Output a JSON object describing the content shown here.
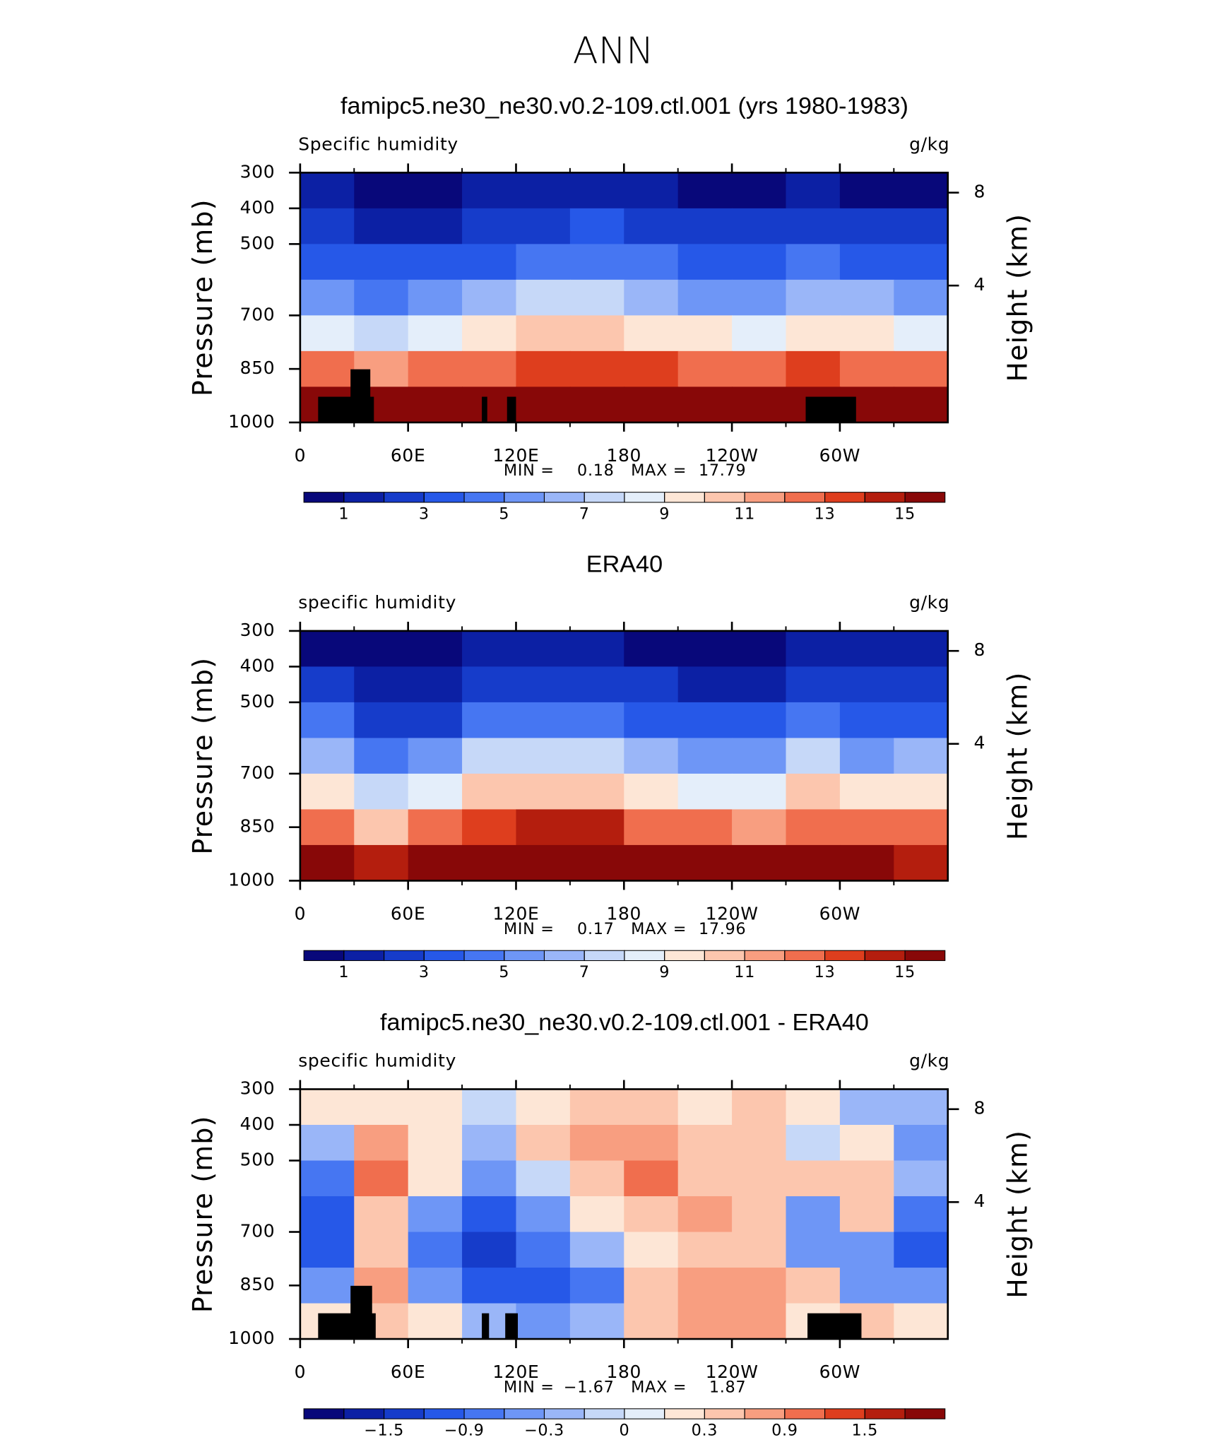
{
  "title": "ANN",
  "chart_data": [
    {
      "type": "contour",
      "title": "famipc5.ne30_ne30.v0.2-109.ctl.001 (yrs 1980-1983)",
      "left_label": "Specific humidity",
      "right_label": "g/kg",
      "ylabel": "Pressure (mb)",
      "y2label": "Height (km)",
      "xlim": [
        0,
        360
      ],
      "ylim": [
        1000,
        300
      ],
      "xticks": [
        0,
        {
          "value": 60,
          "label": "60E"
        },
        {
          "value": 120,
          "label": "120E"
        },
        180,
        {
          "value": 240,
          "label": "120W"
        },
        {
          "value": 300,
          "label": "60W"
        }
      ],
      "xticks_minor": [
        30,
        90,
        150,
        210,
        270,
        330
      ],
      "yticks": [
        300,
        400,
        500,
        700,
        850,
        1000
      ],
      "y2ticks": [
        4,
        8
      ],
      "x": [
        15,
        45,
        75,
        105,
        135,
        165,
        195,
        225,
        255,
        285,
        315,
        345
      ],
      "y": [
        350,
        450,
        550,
        650,
        750,
        850,
        950
      ],
      "z": [
        [
          1.0,
          0.8,
          0.7,
          1.0,
          1.3,
          1.4,
          1.2,
          0.9,
          0.8,
          1.2,
          0.9,
          0.8
        ],
        [
          2.0,
          1.8,
          1.6,
          2.2,
          2.8,
          3.0,
          2.6,
          2.2,
          2.0,
          2.8,
          2.3,
          2.0
        ],
        [
          3.5,
          3.0,
          3.0,
          3.8,
          4.5,
          4.8,
          4.3,
          3.8,
          3.5,
          4.5,
          3.8,
          3.5
        ],
        [
          5.5,
          4.5,
          5.0,
          6.0,
          7.0,
          7.2,
          6.5,
          5.8,
          5.5,
          6.5,
          6.0,
          5.5
        ],
        [
          8.5,
          7.5,
          8.0,
          9.0,
          10.0,
          10.2,
          9.5,
          9.0,
          8.8,
          9.5,
          9.0,
          8.5
        ],
        [
          12,
          11.5,
          12,
          12.5,
          13.5,
          13.5,
          13,
          12.8,
          12.5,
          13,
          12.5,
          12
        ],
        [
          15.5,
          15,
          15.5,
          16,
          16.5,
          16.5,
          16.5,
          16.5,
          16,
          16,
          15.5,
          15
        ]
      ],
      "terrain": [
        {
          "x0": 10,
          "x1": 41,
          "top": 928
        },
        {
          "x0": 28,
          "x1": 39,
          "top": 851
        },
        {
          "x0": 101,
          "x1": 104,
          "top": 928
        },
        {
          "x0": 115,
          "x1": 120,
          "top": 928
        },
        {
          "x0": 281,
          "x1": 309,
          "top": 928
        }
      ],
      "min_label": "MIN =",
      "min": 0.18,
      "max_label": "MAX =",
      "max": 17.79,
      "colorbar": {
        "levels": [
          1,
          2,
          3,
          4,
          5,
          6,
          7,
          8,
          9,
          10,
          11,
          12,
          13,
          14,
          15
        ],
        "labels": [
          1,
          3,
          5,
          7,
          9,
          11,
          13,
          15
        ],
        "colors": [
          "#08087a",
          "#0c20a4",
          "#163cca",
          "#2658e8",
          "#4676f2",
          "#6e96f6",
          "#9ab6f8",
          "#c6d8f8",
          "#e4eefa",
          "#fde6d6",
          "#fcc6ae",
          "#f89e80",
          "#f06e4e",
          "#de3e1e",
          "#b41e0e",
          "#880808"
        ]
      }
    },
    {
      "type": "contour",
      "title": "ERA40",
      "left_label": "specific humidity",
      "right_label": "g/kg",
      "ylabel": "Pressure (mb)",
      "y2label": "Height (km)",
      "xlim": [
        0,
        360
      ],
      "ylim": [
        1000,
        300
      ],
      "xticks": [
        0,
        {
          "value": 60,
          "label": "60E"
        },
        {
          "value": 120,
          "label": "120E"
        },
        180,
        {
          "value": 240,
          "label": "120W"
        },
        {
          "value": 300,
          "label": "60W"
        }
      ],
      "xticks_minor": [
        30,
        90,
        150,
        210,
        270,
        330
      ],
      "yticks": [
        300,
        400,
        500,
        700,
        850,
        1000
      ],
      "y2ticks": [
        4,
        8
      ],
      "x": [
        15,
        45,
        75,
        105,
        135,
        165,
        195,
        225,
        255,
        285,
        315,
        345
      ],
      "y": [
        350,
        450,
        550,
        650,
        750,
        850,
        950
      ],
      "z": [
        [
          0.9,
          0.6,
          0.6,
          1.1,
          1.2,
          1.1,
          0.9,
          0.7,
          0.5,
          1.1,
          1.1,
          1.1
        ],
        [
          2.3,
          1.2,
          1.4,
          2.4,
          2.5,
          2.4,
          2.0,
          1.9,
          1.7,
          2.9,
          2.1,
          2.4
        ],
        [
          4.3,
          2.1,
          2.9,
          4.2,
          4.6,
          4.3,
          3.4,
          3.3,
          3.1,
          4.2,
          3.3,
          3.7
        ],
        [
          6.7,
          4.0,
          5.6,
          7.0,
          7.6,
          7.0,
          6.0,
          5.2,
          5.2,
          7.0,
          5.7,
          6.3
        ],
        [
          9.5,
          7.1,
          8.9,
          10.5,
          10.9,
          10.5,
          9.3,
          8.5,
          8.5,
          10.0,
          9.6,
          9.5
        ],
        [
          12.5,
          10.9,
          12.5,
          13.5,
          14.7,
          14.2,
          12.7,
          12.2,
          11.9,
          12.6,
          12.9,
          12.6
        ],
        [
          15.4,
          14.7,
          15.4,
          16.3,
          17.1,
          16.7,
          16.0,
          15.7,
          15.4,
          15.9,
          15.2,
          14.8
        ]
      ],
      "min_label": "MIN =",
      "min": 0.17,
      "max_label": "MAX =",
      "max": 17.96,
      "colorbar": {
        "levels": [
          1,
          2,
          3,
          4,
          5,
          6,
          7,
          8,
          9,
          10,
          11,
          12,
          13,
          14,
          15
        ],
        "labels": [
          1,
          3,
          5,
          7,
          9,
          11,
          13,
          15
        ],
        "colors": [
          "#08087a",
          "#0c20a4",
          "#163cca",
          "#2658e8",
          "#4676f2",
          "#6e96f6",
          "#9ab6f8",
          "#c6d8f8",
          "#e4eefa",
          "#fde6d6",
          "#fcc6ae",
          "#f89e80",
          "#f06e4e",
          "#de3e1e",
          "#b41e0e",
          "#880808"
        ]
      }
    },
    {
      "type": "contour",
      "title": "famipc5.ne30_ne30.v0.2-109.ctl.001 - ERA40",
      "left_label": "specific humidity",
      "right_label": "g/kg",
      "ylabel": "Pressure (mb)",
      "y2label": "Height (km)",
      "xlim": [
        0,
        360
      ],
      "ylim": [
        1000,
        300
      ],
      "xticks": [
        0,
        {
          "value": 60,
          "label": "60E"
        },
        {
          "value": 120,
          "label": "120E"
        },
        180,
        {
          "value": 240,
          "label": "120W"
        },
        {
          "value": 300,
          "label": "60W"
        }
      ],
      "xticks_minor": [
        30,
        90,
        150,
        210,
        270,
        330
      ],
      "yticks": [
        300,
        400,
        500,
        700,
        850,
        1000
      ],
      "y2ticks": [
        4,
        8
      ],
      "x": [
        15,
        45,
        75,
        105,
        135,
        165,
        195,
        225,
        255,
        285,
        315,
        345
      ],
      "y": [
        350,
        450,
        550,
        650,
        750,
        850,
        950
      ],
      "z": [
        [
          0.1,
          0.2,
          0.1,
          -0.1,
          0.1,
          0.3,
          0.3,
          0.2,
          0.3,
          0.1,
          -0.2,
          -0.3
        ],
        [
          -0.3,
          0.6,
          0.2,
          -0.2,
          0.3,
          0.6,
          0.6,
          0.3,
          0.3,
          -0.1,
          0.2,
          -0.4
        ],
        [
          -0.8,
          0.9,
          0.1,
          -0.4,
          -0.1,
          0.5,
          0.9,
          0.5,
          0.4,
          0.3,
          0.5,
          -0.2
        ],
        [
          -1.2,
          0.5,
          -0.6,
          -1.0,
          -0.6,
          0.2,
          0.5,
          0.6,
          0.3,
          -0.5,
          0.3,
          -0.8
        ],
        [
          -1.0,
          0.4,
          -0.9,
          -1.5,
          -0.9,
          -0.3,
          0.2,
          0.5,
          0.3,
          -0.5,
          -0.6,
          -1.0
        ],
        [
          -0.5,
          0.6,
          -0.5,
          -1.0,
          -1.2,
          -0.7,
          0.3,
          0.6,
          0.6,
          0.4,
          -0.4,
          -0.6
        ],
        [
          0.1,
          0.3,
          0.1,
          -0.3,
          -0.6,
          -0.2,
          0.5,
          0.8,
          0.6,
          0.1,
          0.3,
          0.2
        ]
      ],
      "terrain": [
        {
          "x0": 10,
          "x1": 42,
          "top": 928
        },
        {
          "x0": 28,
          "x1": 40,
          "top": 851
        },
        {
          "x0": 101,
          "x1": 105,
          "top": 928
        },
        {
          "x0": 114,
          "x1": 121,
          "top": 928
        },
        {
          "x0": 282,
          "x1": 312,
          "top": 928
        }
      ],
      "min_label": "MIN =",
      "min": {
        "value": -1.67,
        "label": "−1.67"
      },
      "max_label": "MAX =",
      "max": 1.87,
      "colorbar": {
        "levels": [
          -1.8,
          -1.5,
          -1.2,
          -0.9,
          -0.6,
          -0.3,
          -0.1,
          0,
          0.1,
          0.3,
          0.6,
          0.9,
          1.2,
          1.5,
          1.8
        ],
        "labels": [
          {
            "value": -1.5,
            "label": "−1.5"
          },
          {
            "value": -0.9,
            "label": "−0.9"
          },
          {
            "value": -0.3,
            "label": "−0.3"
          },
          0,
          0.3,
          0.9,
          1.5
        ],
        "colors": [
          "#08087a",
          "#0c20a4",
          "#163cca",
          "#2658e8",
          "#4676f2",
          "#6e96f6",
          "#9ab6f8",
          "#c6d8f8",
          "#e4eefa",
          "#fde6d6",
          "#fcc6ae",
          "#f89e80",
          "#f06e4e",
          "#de3e1e",
          "#b41e0e",
          "#880808"
        ]
      }
    }
  ]
}
